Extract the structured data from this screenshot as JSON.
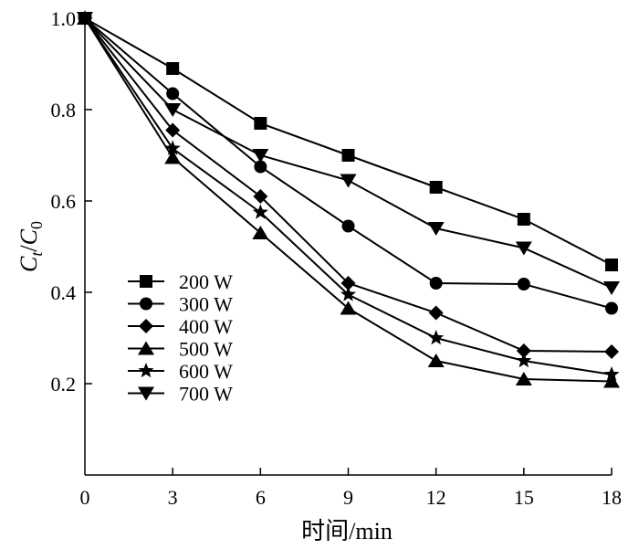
{
  "chart_data": {
    "type": "line",
    "title": "",
    "xlabel": "时间/min",
    "ylabel": {
      "main": "C",
      "sub_t": "t",
      "slash": "/",
      "main2": "C",
      "sub_0": "0"
    },
    "x": [
      0,
      3,
      6,
      9,
      12,
      15,
      18
    ],
    "xlim": [
      0,
      18
    ],
    "ylim": [
      0,
      1.0
    ],
    "x_ticks": [
      "0",
      "3",
      "6",
      "9",
      "12",
      "15",
      "18"
    ],
    "y_ticks": [
      {
        "value": 0.2,
        "label": "0.2"
      },
      {
        "value": 0.4,
        "label": "0.4"
      },
      {
        "value": 0.6,
        "label": "0.6"
      },
      {
        "value": 0.8,
        "label": "0.8"
      },
      {
        "value": 1.0,
        "label": "1.0"
      }
    ],
    "grid": false,
    "legend_position": "bottom-left",
    "color": "#000000",
    "series": [
      {
        "name": "200 W",
        "marker": "square",
        "values": [
          1.0,
          0.89,
          0.77,
          0.7,
          0.63,
          0.56,
          0.46
        ]
      },
      {
        "name": "300 W",
        "marker": "circle",
        "values": [
          1.0,
          0.835,
          0.675,
          0.545,
          0.42,
          0.418,
          0.365
        ]
      },
      {
        "name": "400 W",
        "marker": "diamond",
        "values": [
          1.0,
          0.755,
          0.61,
          0.42,
          0.355,
          0.272,
          0.27
        ]
      },
      {
        "name": "500 W",
        "marker": "triangle-up",
        "values": [
          1.0,
          0.695,
          0.53,
          0.365,
          0.25,
          0.21,
          0.205
        ]
      },
      {
        "name": "600 W",
        "marker": "star",
        "values": [
          1.0,
          0.715,
          0.575,
          0.395,
          0.3,
          0.25,
          0.22
        ]
      },
      {
        "name": "700 W",
        "marker": "triangle-down",
        "values": [
          1.0,
          0.8,
          0.7,
          0.645,
          0.54,
          0.497,
          0.41
        ]
      }
    ]
  }
}
